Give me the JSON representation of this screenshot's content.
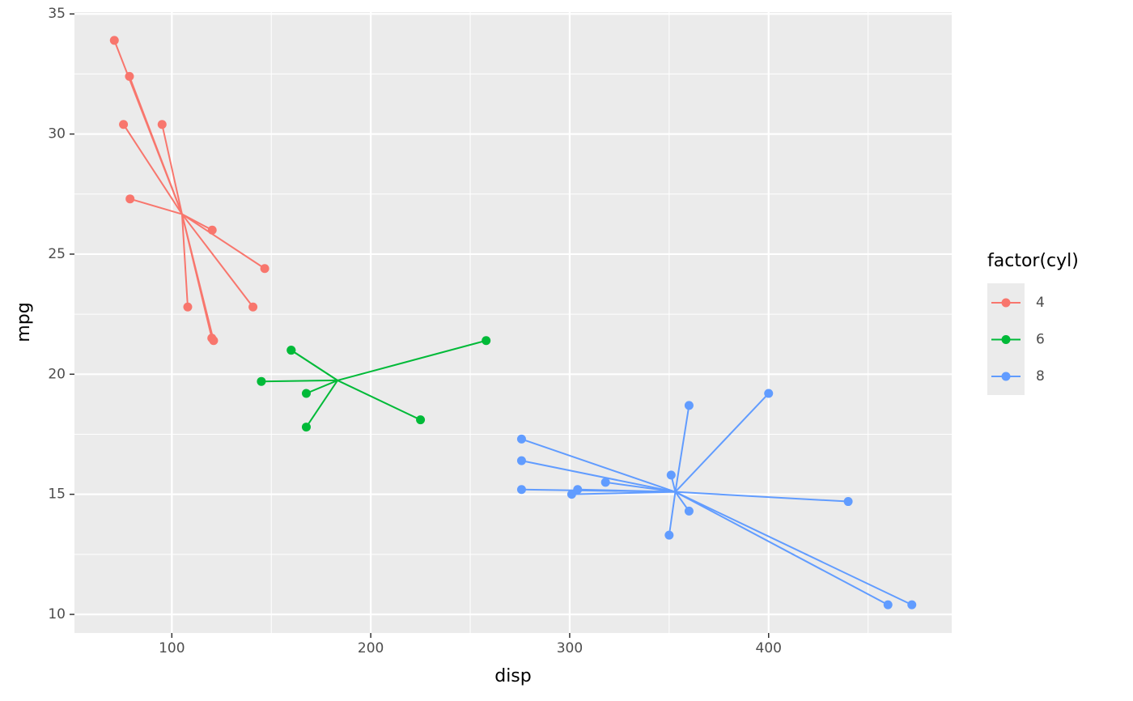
{
  "chart_data": {
    "type": "scatter",
    "x_label": "disp",
    "y_label": "mpg",
    "legend_title": "factor(cyl)",
    "legend_position": "right",
    "grid": true,
    "xlim": [
      51.055,
      492.045
    ],
    "ylim": [
      9.225,
      35.075
    ],
    "xticks": [
      100,
      200,
      300,
      400
    ],
    "yticks": [
      10,
      15,
      20,
      25,
      30,
      35
    ],
    "xminorticks": [
      150,
      250,
      350,
      450
    ],
    "yminorticks": [
      12.5,
      17.5,
      22.5,
      27.5,
      32.5
    ],
    "series": [
      {
        "name": "4",
        "color": "#F8766D",
        "x": [
          108,
          146.7,
          140.8,
          78.7,
          75.7,
          71.1,
          120.1,
          79,
          120.3,
          95.1,
          121
        ],
        "values": [
          22.8,
          24.4,
          22.8,
          32.4,
          30.4,
          33.9,
          21.5,
          27.3,
          26,
          30.4,
          21.4
        ],
        "centroid": [
          105.136,
          26.664
        ]
      },
      {
        "name": "6",
        "color": "#00BA38",
        "x": [
          160,
          160,
          258,
          225,
          167.6,
          167.6,
          145
        ],
        "values": [
          21,
          21,
          21.4,
          18.1,
          19.2,
          17.8,
          19.7
        ],
        "centroid": [
          183.314,
          19.743
        ]
      },
      {
        "name": "8",
        "color": "#619CFF",
        "x": [
          360,
          360,
          275.8,
          275.8,
          275.8,
          472,
          460,
          440,
          318,
          304,
          350,
          400,
          351,
          301
        ],
        "values": [
          18.7,
          14.3,
          16.4,
          17.3,
          15.2,
          10.4,
          10.4,
          14.7,
          15.5,
          15.2,
          13.3,
          19.2,
          15.8,
          15
        ],
        "centroid": [
          353.1,
          15.1
        ]
      }
    ]
  }
}
